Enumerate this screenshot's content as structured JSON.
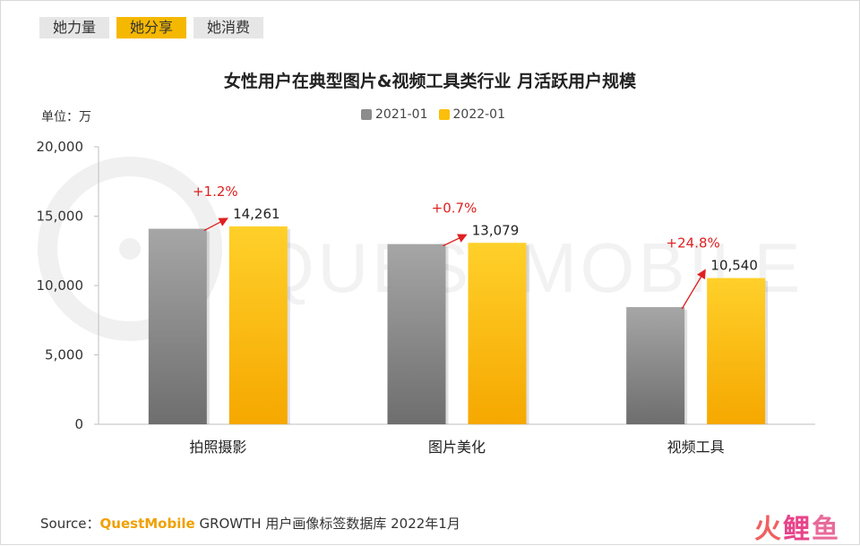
{
  "tabs": [
    {
      "label": "她力量",
      "active": false
    },
    {
      "label": "她分享",
      "active": true
    },
    {
      "label": "她消费",
      "active": false
    }
  ],
  "unit_label": "单位：万",
  "watermark": "QUESTMOBILE",
  "source": {
    "prefix": "Source：",
    "brand": "QuestMobile",
    "rest": "GROWTH 用户画像标签数据库 2022年1月"
  },
  "corner_logo": [
    "火",
    "鲤",
    "鱼"
  ],
  "colors": {
    "series_2021": "#8c8c8c",
    "series_2022": "#fbbf0a",
    "growth": "#e02020",
    "active_tab": "#f5b800"
  },
  "chart_data": {
    "type": "bar",
    "title": "女性用户在典型图片&视频工具类行业 月活跃用户规模",
    "xlabel": "",
    "ylabel": "",
    "categories": [
      "拍照摄影",
      "图片美化",
      "视频工具"
    ],
    "series": [
      {
        "name": "2021-01",
        "values": [
          14092,
          12988,
          8446
        ]
      },
      {
        "name": "2022-01",
        "values": [
          14261,
          13079,
          10540
        ]
      }
    ],
    "data_labels": [
      "14,261",
      "13,079",
      "10,540"
    ],
    "growth_labels": [
      "+1.2%",
      "+0.7%",
      "+24.8%"
    ],
    "ylim": [
      0,
      20000
    ],
    "yticks": [
      0,
      5000,
      10000,
      15000,
      20000
    ],
    "ytick_labels": [
      "0",
      "5,000",
      "10,000",
      "15,000",
      "20,000"
    ],
    "grid": false,
    "legend_position": "top-center"
  }
}
